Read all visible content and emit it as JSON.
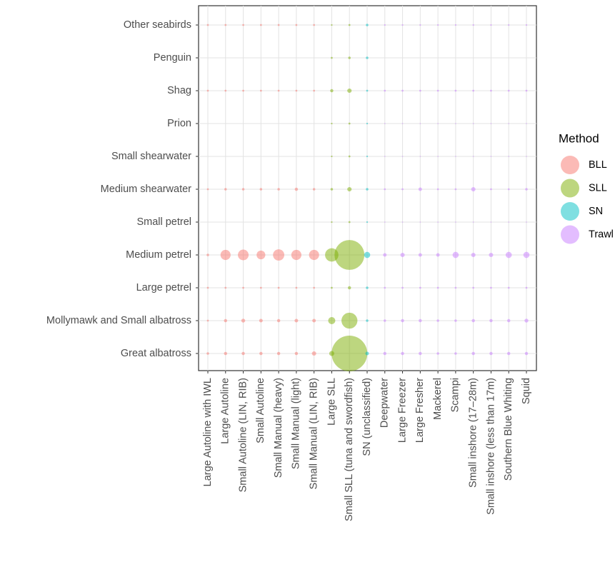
{
  "chart_data": {
    "type": "bubble",
    "legend_title": "Method",
    "legend_position": "right",
    "grid": true,
    "rows": [
      "Other seabirds",
      "Penguin",
      "Shag",
      "Prion",
      "Small shearwater",
      "Medium shearwater",
      "Small petrel",
      "Medium petrel",
      "Large petrel",
      "Mollymawk and Small albatross",
      "Great albatross"
    ],
    "series": [
      {
        "name": "BLL",
        "color": "#F8766D",
        "categories": [
          "Large Autoline with IWL",
          "Large Autoline",
          "Small Autoline (LIN, RIB)",
          "Small Autoline",
          "Small Manual (heavy)",
          "Small Manual (light)",
          "Small Manual (LIN, RIB)"
        ],
        "values": [
          [
            0.3,
            0.3,
            0.3,
            0.3,
            0.3,
            0.3,
            0.3
          ],
          [
            0,
            0,
            0,
            0,
            0,
            0,
            0
          ],
          [
            0.3,
            0.3,
            0.3,
            0.3,
            0.3,
            0.3,
            0.3
          ],
          [
            0,
            0,
            0,
            0,
            0,
            0,
            0
          ],
          [
            0,
            0,
            0,
            0,
            0,
            0,
            0
          ],
          [
            0.3,
            0.5,
            0.5,
            0.5,
            0.5,
            0.8,
            0.5
          ],
          [
            0,
            0,
            0,
            0,
            0,
            0,
            0
          ],
          [
            0.5,
            8,
            9,
            6,
            10,
            8,
            8
          ],
          [
            0.3,
            0.3,
            0.3,
            0.3,
            0.3,
            0.3,
            0.3
          ],
          [
            0.3,
            0.8,
            1.2,
            1,
            0.8,
            1,
            1
          ],
          [
            0.5,
            0.8,
            0.8,
            0.8,
            0.8,
            0.8,
            1.5
          ]
        ]
      },
      {
        "name": "SLL",
        "color": "#7CAE00",
        "categories": [
          "Large SLL",
          "Small SLL (tuna and swordfish)"
        ],
        "values": [
          [
            0.2,
            0.3
          ],
          [
            0.3,
            0.5
          ],
          [
            0.8,
            1.5
          ],
          [
            0.2,
            0.3
          ],
          [
            0.2,
            0.3
          ],
          [
            0.5,
            1.5
          ],
          [
            0.2,
            0.3
          ],
          [
            14,
            70
          ],
          [
            0.3,
            0.8
          ],
          [
            4,
            20
          ],
          [
            2,
            100
          ]
        ]
      },
      {
        "name": "SN",
        "color": "#00BFC4",
        "categories": [
          "SN (unclassified)"
        ],
        "values": [
          [
            0.5
          ],
          [
            0.5
          ],
          [
            0.3
          ],
          [
            0.2
          ],
          [
            0.2
          ],
          [
            0.5
          ],
          [
            0.2
          ],
          [
            3
          ],
          [
            0.5
          ],
          [
            0.5
          ],
          [
            1
          ]
        ]
      },
      {
        "name": "Trawl",
        "color": "#C77CFF",
        "categories": [
          "Deepwater",
          "Large Freezer",
          "Large Fresher",
          "Mackerel",
          "Scampi",
          "Small inshore (17–28m)",
          "Small inshore (less than 17m)",
          "Southern Blue Whiting",
          "Squid"
        ],
        "values": [
          [
            0.2,
            0.2,
            0.2,
            0.2,
            0.2,
            0.2,
            0.2,
            0.2,
            0.2
          ],
          [
            0,
            0,
            0,
            0,
            0,
            0,
            0,
            0,
            0
          ],
          [
            0.3,
            0.3,
            0.3,
            0.3,
            0.3,
            0.3,
            0.3,
            0.3,
            0.3
          ],
          [
            0.1,
            0.1,
            0.1,
            0.1,
            0.1,
            0.1,
            0.1,
            0.1,
            0.1
          ],
          [
            0.1,
            0.1,
            0.1,
            0.1,
            0.1,
            0.1,
            0.1,
            0.1,
            0.1
          ],
          [
            0.3,
            0.3,
            1,
            0.3,
            0.3,
            1.5,
            0.3,
            0.3,
            0.5
          ],
          [
            0.1,
            0.1,
            0.1,
            0.1,
            0.1,
            0.1,
            0.1,
            0.1,
            0.1
          ],
          [
            1,
            1.5,
            1,
            1,
            3,
            1.5,
            1.5,
            3,
            3
          ],
          [
            0.3,
            0.3,
            0.3,
            0.3,
            0.3,
            0.3,
            0.3,
            0.3,
            0.3
          ],
          [
            0.5,
            0.8,
            0.8,
            0.5,
            0.5,
            0.8,
            0.8,
            0.8,
            1.2
          ],
          [
            0.8,
            0.8,
            0.8,
            0.5,
            0.5,
            0.8,
            0.8,
            0.8,
            0.8
          ]
        ]
      }
    ]
  }
}
